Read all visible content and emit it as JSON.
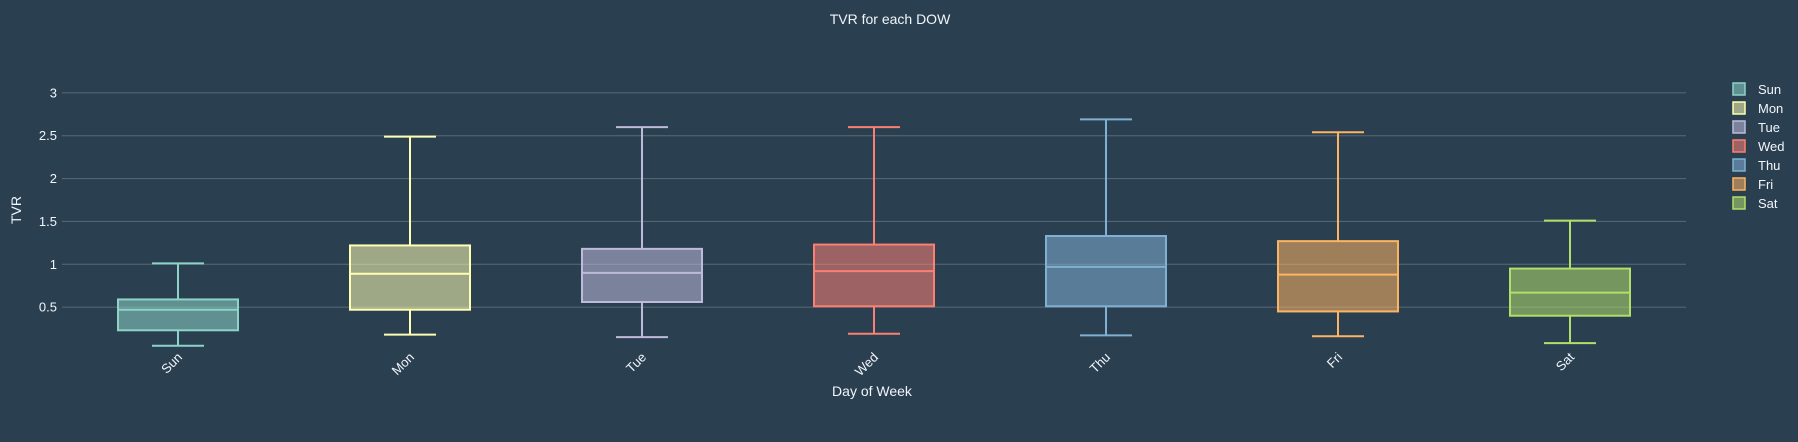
{
  "chart_data": {
    "type": "box",
    "title": "TVR for each DOW",
    "xlabel": "Day of Week",
    "ylabel": "TVR",
    "ylim": [
      0,
      3.15
    ],
    "yticks": [
      0.5,
      1,
      1.5,
      2,
      2.5,
      3
    ],
    "ytick_labels": [
      "0.5",
      "1",
      "1.5",
      "2",
      "2.5",
      "3"
    ],
    "grid": true,
    "legend_position": "top-right",
    "categories": [
      "Sun",
      "Mon",
      "Tue",
      "Wed",
      "Thu",
      "Fri",
      "Sat"
    ],
    "series": [
      {
        "name": "Sun",
        "color": "#8dd3c7",
        "min": 0.05,
        "q1": 0.23,
        "median": 0.47,
        "q3": 0.59,
        "max": 1.01
      },
      {
        "name": "Mon",
        "color": "#ffffb3",
        "min": 0.18,
        "q1": 0.47,
        "median": 0.89,
        "q3": 1.22,
        "max": 2.49
      },
      {
        "name": "Tue",
        "color": "#bebada",
        "min": 0.15,
        "q1": 0.56,
        "median": 0.9,
        "q3": 1.18,
        "max": 2.6
      },
      {
        "name": "Wed",
        "color": "#fb8072",
        "min": 0.19,
        "q1": 0.51,
        "median": 0.92,
        "q3": 1.23,
        "max": 2.6
      },
      {
        "name": "Thu",
        "color": "#80b1d3",
        "min": 0.17,
        "q1": 0.51,
        "median": 0.97,
        "q3": 1.33,
        "max": 2.69
      },
      {
        "name": "Fri",
        "color": "#fdb462",
        "min": 0.16,
        "q1": 0.45,
        "median": 0.88,
        "q3": 1.27,
        "max": 2.54
      },
      {
        "name": "Sat",
        "color": "#b3de69",
        "min": 0.08,
        "q1": 0.4,
        "median": 0.67,
        "q3": 0.95,
        "max": 1.51
      }
    ]
  }
}
